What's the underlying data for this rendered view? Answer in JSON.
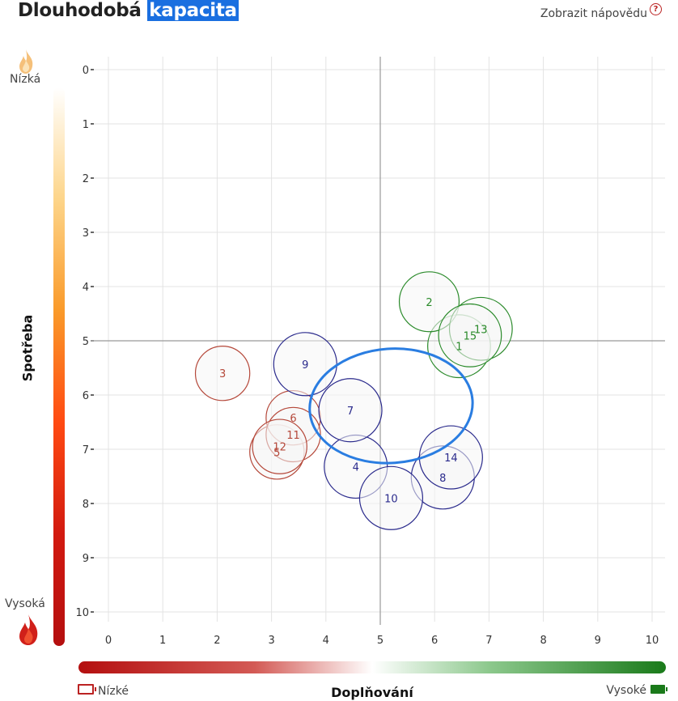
{
  "header": {
    "title_plain": "Dlouhodobá",
    "title_highlight": "kapacita",
    "help_label": "Zobrazit nápovědu"
  },
  "consumption_scale": {
    "label": "Spotřeba",
    "low_label": "Nízká",
    "high_label": "Vysoká"
  },
  "replenishment_scale": {
    "label": "Doplňování",
    "low_label": "Nízké",
    "high_label": "Vysoké"
  },
  "colors": {
    "red_series": "#b5483a",
    "blue_series": "#2a2a8c",
    "green_series": "#2a8a2a",
    "ellipse": "#2a7de1",
    "grid": "#e3e3e3",
    "midline": "#999999"
  },
  "chart_data": {
    "type": "scatter",
    "title": "Dlouhodobá kapacita",
    "xlabel": "Doplňování",
    "ylabel": "Spotřeba",
    "xlim": [
      0,
      10
    ],
    "ylim": [
      0,
      10
    ],
    "y_inverted": true,
    "x_ticks": [
      0,
      1,
      2,
      3,
      4,
      5,
      6,
      7,
      8,
      9,
      10
    ],
    "y_ticks": [
      0,
      1,
      2,
      3,
      4,
      5,
      6,
      7,
      8,
      9,
      10
    ],
    "grid": true,
    "reference_lines": {
      "x": 5,
      "y": 5
    },
    "points": [
      {
        "label": "1",
        "x": 6.45,
        "y": 5.1,
        "group": "green"
      },
      {
        "label": "2",
        "x": 5.9,
        "y": 4.28,
        "group": "green"
      },
      {
        "label": "3",
        "x": 2.1,
        "y": 5.6,
        "group": "red"
      },
      {
        "label": "4",
        "x": 4.55,
        "y": 7.32,
        "group": "blue"
      },
      {
        "label": "5",
        "x": 3.1,
        "y": 7.05,
        "group": "red"
      },
      {
        "label": "6",
        "x": 3.4,
        "y": 6.42,
        "group": "red"
      },
      {
        "label": "7",
        "x": 4.45,
        "y": 6.28,
        "group": "blue"
      },
      {
        "label": "8",
        "x": 6.15,
        "y": 7.52,
        "group": "blue"
      },
      {
        "label": "9",
        "x": 3.62,
        "y": 5.43,
        "group": "blue"
      },
      {
        "label": "10",
        "x": 5.2,
        "y": 7.9,
        "group": "blue"
      },
      {
        "label": "11",
        "x": 3.4,
        "y": 6.73,
        "group": "red"
      },
      {
        "label": "12",
        "x": 3.15,
        "y": 6.95,
        "group": "red"
      },
      {
        "label": "13",
        "x": 6.85,
        "y": 4.78,
        "group": "green"
      },
      {
        "label": "14",
        "x": 6.3,
        "y": 7.15,
        "group": "blue"
      },
      {
        "label": "15",
        "x": 6.65,
        "y": 4.9,
        "group": "green"
      }
    ],
    "ellipse": {
      "cx": 5.2,
      "cy": 6.2,
      "rx": 1.5,
      "ry": 1.05
    }
  }
}
